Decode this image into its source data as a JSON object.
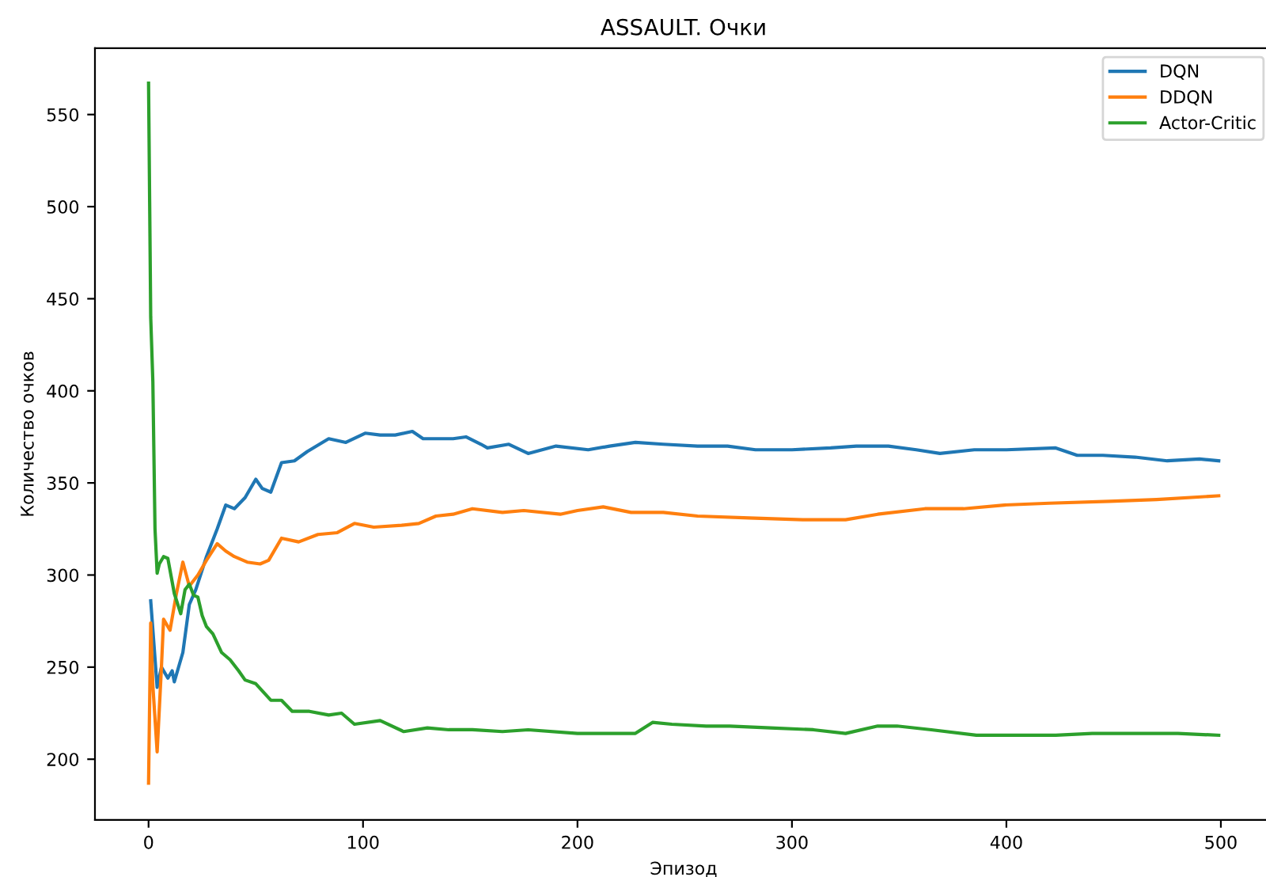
{
  "chart_data": {
    "type": "line",
    "title": "ASSAULT. Очки",
    "xlabel": "Эпизод",
    "ylabel": "Количество очков",
    "xlim": [
      -25,
      524
    ],
    "ylim": [
      167,
      586
    ],
    "xticks": [
      0,
      100,
      200,
      300,
      400,
      500
    ],
    "yticks": [
      200,
      250,
      300,
      350,
      400,
      450,
      500,
      550
    ],
    "grid": false,
    "legend": "top right",
    "series": [
      {
        "name": "DQN",
        "color": "#1f77b4",
        "x": [
          1,
          4,
          6,
          9,
          11,
          12,
          16,
          19,
          22,
          27,
          32,
          36,
          40,
          45,
          50,
          53,
          57,
          62,
          68,
          74,
          84,
          92,
          101,
          108,
          115,
          123,
          128,
          134,
          142,
          148,
          155,
          158,
          168,
          177,
          190,
          205,
          215,
          227,
          240,
          256,
          270,
          283,
          300,
          318,
          330,
          345,
          358,
          369,
          385,
          400,
          423,
          433,
          445,
          460,
          475,
          490,
          499
        ],
        "values": [
          286,
          239,
          250,
          244,
          248,
          242,
          258,
          284,
          292,
          310,
          325,
          338,
          336,
          342,
          352,
          347,
          345,
          361,
          362,
          367,
          374,
          372,
          377,
          376,
          376,
          378,
          374,
          374,
          374,
          375,
          371,
          369,
          371,
          366,
          370,
          368,
          370,
          372,
          371,
          370,
          370,
          368,
          368,
          369,
          370,
          370,
          368,
          366,
          368,
          368,
          369,
          365,
          365,
          364,
          362,
          363,
          362
        ]
      },
      {
        "name": "DDQN",
        "color": "#ff7f0e",
        "x": [
          0,
          1,
          2,
          4,
          6,
          7,
          10,
          13,
          16,
          19,
          23,
          27,
          32,
          36,
          40,
          46,
          52,
          56,
          62,
          70,
          79,
          88,
          96,
          105,
          118,
          126,
          134,
          142,
          151,
          165,
          175,
          192,
          200,
          212,
          225,
          240,
          256,
          280,
          305,
          325,
          340,
          362,
          380,
          399,
          420,
          448,
          470,
          499
        ],
        "values": [
          187,
          274,
          240,
          204,
          250,
          276,
          270,
          290,
          307,
          294,
          300,
          308,
          317,
          313,
          310,
          307,
          306,
          308,
          320,
          318,
          322,
          323,
          328,
          326,
          327,
          328,
          332,
          333,
          336,
          334,
          335,
          333,
          335,
          337,
          334,
          334,
          332,
          331,
          330,
          330,
          333,
          336,
          336,
          338,
          339,
          340,
          341,
          343
        ]
      },
      {
        "name": "Actor-Critic",
        "color": "#2ca02c",
        "x": [
          0,
          1,
          2,
          3,
          4,
          5,
          7,
          9,
          12,
          15,
          17,
          19,
          21,
          23,
          25,
          27,
          30,
          34,
          38,
          42,
          45,
          50,
          57,
          62,
          67,
          75,
          84,
          90,
          96,
          108,
          119,
          130,
          140,
          151,
          165,
          177,
          200,
          215,
          227,
          235,
          244,
          260,
          271,
          290,
          310,
          325,
          340,
          349,
          365,
          386,
          405,
          423,
          440,
          460,
          480,
          499
        ],
        "values": [
          567,
          440,
          405,
          325,
          301,
          306,
          310,
          309,
          290,
          279,
          292,
          295,
          289,
          288,
          278,
          272,
          268,
          258,
          254,
          248,
          243,
          241,
          232,
          232,
          226,
          226,
          224,
          225,
          219,
          221,
          215,
          217,
          216,
          216,
          215,
          216,
          214,
          214,
          214,
          220,
          219,
          218,
          218,
          217,
          216,
          214,
          218,
          218,
          216,
          213,
          213,
          213,
          214,
          214,
          214,
          213
        ]
      }
    ]
  }
}
